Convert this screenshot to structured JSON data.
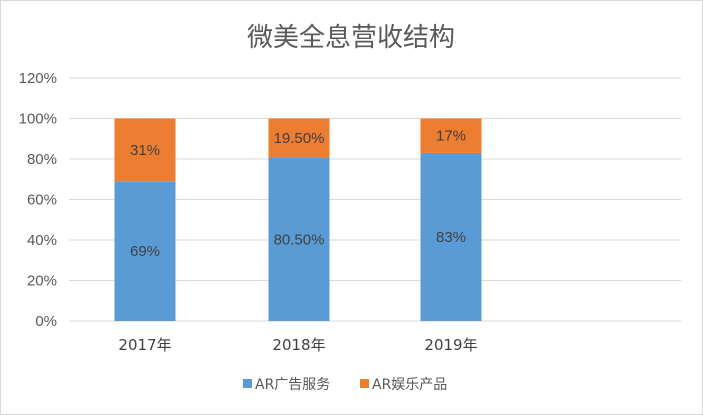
{
  "chart_data": {
    "type": "bar",
    "stacked": true,
    "title": "微美全息营收结构",
    "categories": [
      "2017年",
      "2018年",
      "2019年"
    ],
    "series": [
      {
        "name": "AR广告服务",
        "color": "#5b9bd5",
        "values": [
          69,
          80.5,
          83
        ],
        "labels": [
          "69%",
          "80.50%",
          "83%"
        ]
      },
      {
        "name": "AR娱乐产品",
        "color": "#ed7d31",
        "values": [
          31,
          19.5,
          17
        ],
        "labels": [
          "31%",
          "19.50%",
          "17%"
        ]
      }
    ],
    "ylim": [
      0,
      120
    ],
    "yticks": [
      "0%",
      "20%",
      "40%",
      "60%",
      "80%",
      "100%",
      "120%"
    ],
    "grid": true,
    "legend": "bottom",
    "xlabel": "",
    "ylabel": ""
  }
}
